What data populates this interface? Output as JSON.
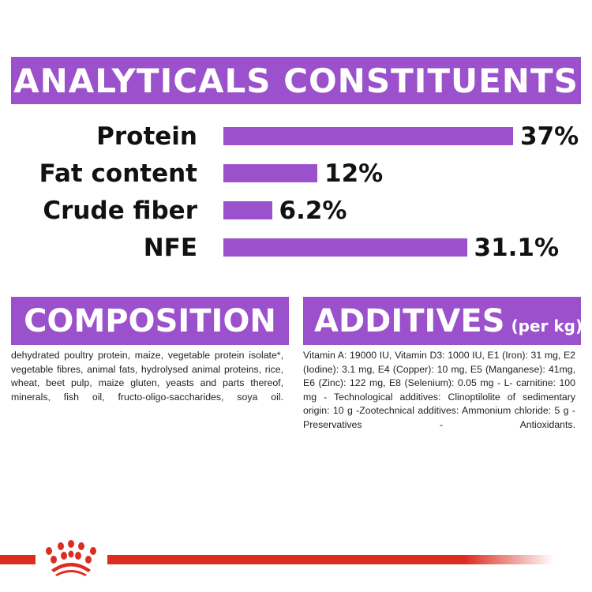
{
  "title": "ANALYTICALS CONSTITUENTS",
  "chart_data": {
    "type": "bar",
    "orientation": "horizontal",
    "categories": [
      "Protein",
      "Fat content",
      "Crude fiber",
      "NFE"
    ],
    "values": [
      37,
      12,
      6.2,
      31.1
    ],
    "value_labels": [
      "37%",
      "12%",
      "6.2%",
      "31.1%"
    ],
    "unit": "%",
    "bar_color": "#9b50cc"
  },
  "composition": {
    "heading": "COMPOSITION",
    "text": "dehydrated poultry protein, maize, vegetable protein isolate*, vegetable fibres, animal fats, hydrolysed animal proteins, rice, wheat, beet pulp, maize gluten, yeasts and parts thereof, minerals, fish oil, fructo-oligo-saccharides, soya oil."
  },
  "additives": {
    "heading": "ADDITIVES",
    "heading_suffix": "(per kg)",
    "text": "Vitamin A: 19000 IU, Vitamin D3: 1000 IU, E1 (Iron): 31 mg, E2 (Iodine): 3.1 mg, E4 (Copper): 10 mg, E5 (Manganese): 41mg, E6 (Zinc): 122 mg, E8 (Selenium): 0.05 mg - L- carnitine: 100 mg - Technological additives: Clinoptilolite of sedimentary origin: 10 g -Zootechnical additives: Ammonium chloride: 5 g - Preservatives - Antioxidants."
  },
  "colors": {
    "accent": "#9b50cc",
    "brand_red": "#dc2d21"
  },
  "logo": "royal-canin-crown"
}
